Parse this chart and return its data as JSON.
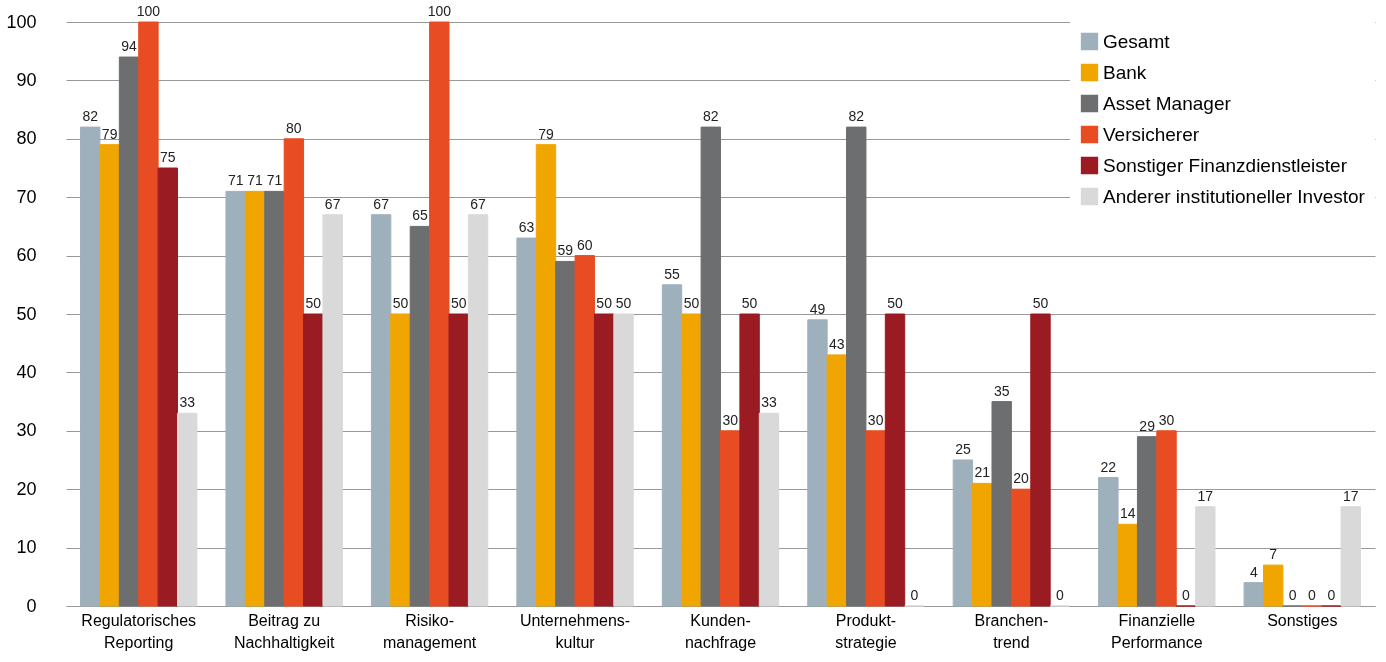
{
  "chart_data": {
    "type": "bar",
    "categories": [
      "Regulatorisches\nReporting",
      "Beitrag zu\nNachhaltigkeit",
      "Risiko-\nmanagement",
      "Unternehmens-\nkultur",
      "Kunden-\nnachfrage",
      "Produkt-\nstrategie",
      "Branchen-\ntrend",
      "Finanzielle\nPerformance",
      "Sonstiges"
    ],
    "series": [
      {
        "name": "Gesamt",
        "color": "#9fb0bd",
        "values": [
          82,
          71,
          67,
          63,
          55,
          49,
          25,
          22,
          4
        ]
      },
      {
        "name": "Bank",
        "color": "#f0a500",
        "values": [
          79,
          71,
          50,
          79,
          50,
          43,
          21,
          14,
          7
        ]
      },
      {
        "name": "Asset Manager",
        "color": "#6d6e70",
        "values": [
          94,
          71,
          65,
          59,
          82,
          82,
          35,
          29,
          0
        ]
      },
      {
        "name": "Versicherer",
        "color": "#e84c22",
        "values": [
          100,
          80,
          100,
          60,
          30,
          30,
          20,
          30,
          0
        ]
      },
      {
        "name": "Sonstiger Finanzdienstleister",
        "color": "#9b1b22",
        "values": [
          75,
          50,
          50,
          50,
          50,
          50,
          50,
          0,
          0
        ]
      },
      {
        "name": "Anderer institutioneller Investor",
        "color": "#d9d9d9",
        "values": [
          33,
          67,
          67,
          50,
          33,
          0,
          0,
          17,
          17
        ]
      }
    ],
    "ylim": [
      0,
      100
    ],
    "yticks": [
      0,
      10,
      20,
      30,
      40,
      50,
      60,
      70,
      80,
      90,
      100
    ],
    "grid": "y",
    "legend": "top right",
    "data_labels": true
  }
}
